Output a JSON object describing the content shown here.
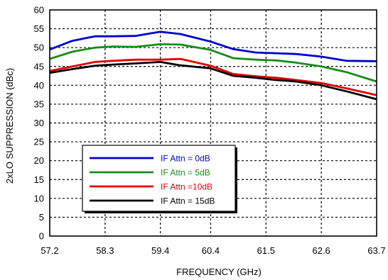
{
  "chart_data": {
    "type": "line",
    "title": "",
    "xlabel": "FREQUENCY (GHz)",
    "ylabel": "2xLO SUPPRESSION (dBc)",
    "xlim": [
      57.2,
      63.7
    ],
    "ylim": [
      0,
      60
    ],
    "x_ticks": [
      "57.2",
      "58.3",
      "59.4",
      "60.4",
      "61.5",
      "62.6",
      "63.7"
    ],
    "x_tick_values": [
      57.2,
      58.3,
      59.4,
      60.4,
      61.5,
      62.6,
      63.7
    ],
    "y_ticks": [
      0,
      5,
      10,
      15,
      20,
      25,
      30,
      35,
      40,
      45,
      50,
      55,
      60
    ],
    "grid": true,
    "legend_position": "lower-left",
    "x": [
      57.2,
      57.65,
      58.1,
      58.45,
      58.9,
      59.4,
      59.8,
      60.4,
      60.85,
      61.3,
      61.7,
      62.1,
      62.6,
      63.1,
      63.7
    ],
    "series": [
      {
        "name": "IF Attn = 0dB",
        "color": "#0000cc",
        "label_color": "#0000cc",
        "values": [
          49.5,
          51.8,
          53.0,
          53.0,
          53.1,
          54.2,
          53.6,
          51.6,
          49.6,
          48.7,
          48.5,
          48.3,
          47.6,
          46.5,
          46.4
        ]
      },
      {
        "name": "IF Attn = 5dB",
        "color": "#1a8a1a",
        "label_color": "#1a8a1a",
        "values": [
          47.0,
          48.9,
          50.0,
          50.3,
          50.2,
          50.9,
          50.8,
          49.4,
          47.2,
          46.8,
          46.6,
          46.0,
          45.0,
          43.5,
          41.0
        ]
      },
      {
        "name": "IF Attn =10dB",
        "color": "#dd0000",
        "label_color": "#dd0000",
        "values": [
          43.8,
          45.0,
          46.2,
          46.5,
          46.8,
          46.8,
          47.0,
          45.2,
          43.0,
          42.4,
          42.0,
          41.4,
          40.6,
          39.2,
          37.4
        ]
      },
      {
        "name": "IF Attn = 15dB",
        "color": "#000000",
        "label_color": "#000000",
        "values": [
          43.3,
          44.3,
          45.2,
          45.5,
          45.8,
          46.2,
          45.3,
          44.5,
          42.5,
          42.0,
          41.4,
          41.0,
          40.0,
          38.4,
          36.3
        ]
      }
    ]
  }
}
